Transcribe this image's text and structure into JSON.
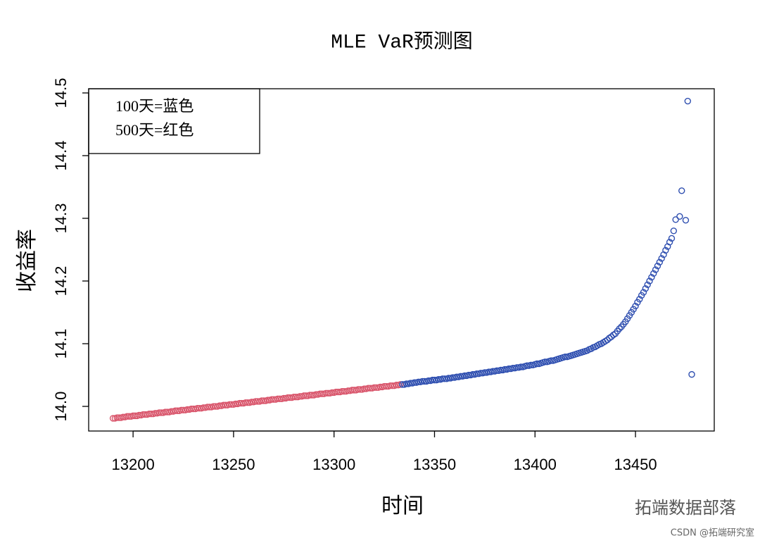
{
  "chart_data": {
    "type": "scatter",
    "title": "MLE VaR预测图",
    "xlabel": "时间",
    "ylabel": "收益率",
    "legend": [
      "100天=蓝色",
      "500天=红色"
    ],
    "legend_position": "top-left",
    "xlim": [
      13177.9,
      13489.2
    ],
    "ylim": [
      13.9607,
      14.5067
    ],
    "xticks": [
      13200,
      13250,
      13300,
      13350,
      13400,
      13450
    ],
    "yticks": [
      {
        "value": 14,
        "label": "14.0"
      },
      14.1,
      14.2,
      14.3,
      14.4,
      14.5
    ],
    "series": [
      {
        "color": "#d9566c",
        "x": [
          13190,
          13191,
          13192,
          13193,
          13194,
          13195,
          13196,
          13197,
          13198,
          13199,
          13200,
          13201,
          13202,
          13203,
          13204,
          13205,
          13206,
          13207,
          13208,
          13209,
          13210,
          13211,
          13212,
          13213,
          13214,
          13215,
          13216,
          13217,
          13218,
          13219,
          13220,
          13221,
          13222,
          13223,
          13224,
          13225,
          13226,
          13227,
          13228,
          13229,
          13230,
          13231,
          13232,
          13233,
          13234,
          13235,
          13236,
          13237,
          13238,
          13239,
          13240,
          13241,
          13242,
          13243,
          13244,
          13245,
          13246,
          13247,
          13248,
          13249,
          13250,
          13251,
          13252,
          13253,
          13254,
          13255,
          13256,
          13257,
          13258,
          13259,
          13260,
          13261,
          13262,
          13263,
          13264,
          13265,
          13266,
          13267,
          13268,
          13269,
          13270,
          13271,
          13272,
          13273,
          13274,
          13275,
          13276,
          13277,
          13278,
          13279,
          13280,
          13281,
          13282,
          13283,
          13284,
          13285,
          13286,
          13287,
          13288,
          13289,
          13290,
          13291,
          13292,
          13293,
          13294,
          13295,
          13296,
          13297,
          13298,
          13299,
          13300,
          13301,
          13302,
          13303,
          13304,
          13305,
          13306,
          13307,
          13308,
          13309,
          13310,
          13311,
          13312,
          13313,
          13314,
          13315,
          13316,
          13317,
          13318,
          13319,
          13320,
          13321,
          13322,
          13323,
          13324,
          13325,
          13326,
          13327,
          13328,
          13329,
          13330,
          13331,
          13332,
          13333
        ],
        "values": [
          13.981,
          13.981,
          13.982,
          13.982,
          13.982,
          13.983,
          13.983,
          13.984,
          13.984,
          13.984,
          13.985,
          13.985,
          13.985,
          13.986,
          13.986,
          13.987,
          13.987,
          13.987,
          13.988,
          13.988,
          13.988,
          13.989,
          13.989,
          13.99,
          13.99,
          13.99,
          13.991,
          13.991,
          13.991,
          13.992,
          13.992,
          13.993,
          13.993,
          13.993,
          13.994,
          13.994,
          13.994,
          13.995,
          13.995,
          13.996,
          13.996,
          13.996,
          13.997,
          13.997,
          13.997,
          13.998,
          13.998,
          13.999,
          13.999,
          13.999,
          14.0,
          14.0,
          14.0,
          14.001,
          14.001,
          14.002,
          14.002,
          14.002,
          14.003,
          14.003,
          14.003,
          14.004,
          14.004,
          14.005,
          14.005,
          14.005,
          14.006,
          14.006,
          14.006,
          14.007,
          14.007,
          14.008,
          14.008,
          14.008,
          14.009,
          14.009,
          14.009,
          14.01,
          14.01,
          14.011,
          14.011,
          14.011,
          14.012,
          14.012,
          14.012,
          14.013,
          14.013,
          14.014,
          14.014,
          14.014,
          14.015,
          14.015,
          14.015,
          14.016,
          14.016,
          14.017,
          14.017,
          14.017,
          14.018,
          14.018,
          14.018,
          14.019,
          14.019,
          14.02,
          14.02,
          14.02,
          14.021,
          14.021,
          14.021,
          14.022,
          14.022,
          14.023,
          14.023,
          14.023,
          14.024,
          14.024,
          14.024,
          14.025,
          14.025,
          14.026,
          14.026,
          14.026,
          14.027,
          14.027,
          14.027,
          14.028,
          14.028,
          14.029,
          14.029,
          14.029,
          14.03,
          14.03,
          14.03,
          14.031,
          14.031,
          14.032,
          14.032,
          14.032,
          14.033,
          14.033,
          14.033,
          14.034,
          14.034,
          14.035
        ]
      },
      {
        "color": "#2f4fb0",
        "x": [
          13334,
          13335,
          13336,
          13337,
          13338,
          13339,
          13340,
          13341,
          13342,
          13343,
          13344,
          13345,
          13346,
          13347,
          13348,
          13349,
          13350,
          13351,
          13352,
          13353,
          13354,
          13355,
          13356,
          13357,
          13358,
          13359,
          13360,
          13361,
          13362,
          13363,
          13364,
          13365,
          13366,
          13367,
          13368,
          13369,
          13370,
          13371,
          13372,
          13373,
          13374,
          13375,
          13376,
          13377,
          13378,
          13379,
          13380,
          13381,
          13382,
          13383,
          13384,
          13385,
          13386,
          13387,
          13388,
          13389,
          13390,
          13391,
          13392,
          13393,
          13394,
          13395,
          13396,
          13397,
          13398,
          13399,
          13400,
          13401,
          13402,
          13403,
          13404,
          13405,
          13406,
          13407,
          13408,
          13409,
          13410,
          13411,
          13412,
          13413,
          13414,
          13415,
          13416,
          13417,
          13418,
          13419,
          13420,
          13421,
          13422,
          13423,
          13424,
          13425,
          13426,
          13427,
          13428,
          13429,
          13430,
          13431,
          13432,
          13433,
          13434,
          13435,
          13436,
          13437,
          13438,
          13439,
          13440,
          13441,
          13442,
          13443,
          13444,
          13445,
          13446,
          13447,
          13448,
          13449,
          13450,
          13451,
          13452,
          13453,
          13454,
          13455,
          13456,
          13457,
          13458,
          13459,
          13460,
          13461,
          13462,
          13463,
          13464,
          13465,
          13466,
          13467,
          13468,
          13469,
          13470,
          13472,
          13473,
          13475,
          13476,
          13478
        ],
        "values": [
          14.035,
          14.035,
          14.036,
          14.036,
          14.037,
          14.037,
          14.038,
          14.038,
          14.039,
          14.039,
          14.04,
          14.04,
          14.04,
          14.041,
          14.041,
          14.042,
          14.042,
          14.042,
          14.043,
          14.043,
          14.044,
          14.044,
          14.044,
          14.045,
          14.045,
          14.046,
          14.046,
          14.047,
          14.047,
          14.048,
          14.048,
          14.049,
          14.049,
          14.05,
          14.05,
          14.051,
          14.051,
          14.052,
          14.052,
          14.053,
          14.053,
          14.054,
          14.054,
          14.055,
          14.055,
          14.056,
          14.056,
          14.057,
          14.057,
          14.058,
          14.058,
          14.059,
          14.059,
          14.06,
          14.06,
          14.061,
          14.061,
          14.062,
          14.062,
          14.063,
          14.063,
          14.064,
          14.065,
          14.065,
          14.066,
          14.066,
          14.067,
          14.068,
          14.068,
          14.069,
          14.07,
          14.071,
          14.071,
          14.072,
          14.073,
          14.073,
          14.074,
          14.075,
          14.076,
          14.077,
          14.078,
          14.079,
          14.079,
          14.08,
          14.081,
          14.082,
          14.083,
          14.084,
          14.085,
          14.086,
          14.087,
          14.088,
          14.089,
          14.091,
          14.092,
          14.094,
          14.095,
          14.097,
          14.099,
          14.1,
          14.102,
          14.104,
          14.106,
          14.109,
          14.111,
          14.114,
          14.116,
          14.12,
          14.124,
          14.127,
          14.131,
          14.135,
          14.14,
          14.145,
          14.15,
          14.155,
          14.16,
          14.166,
          14.171,
          14.177,
          14.182,
          14.188,
          14.194,
          14.2,
          14.206,
          14.212,
          14.218,
          14.224,
          14.23,
          14.236,
          14.242,
          14.249,
          14.255,
          14.262,
          14.268,
          14.28,
          14.298,
          14.303,
          14.344,
          14.297,
          14.487,
          14.051
        ]
      }
    ]
  },
  "watermark": {
    "brand": "拓端数据部落",
    "source": "CSDN @拓端研究室"
  }
}
